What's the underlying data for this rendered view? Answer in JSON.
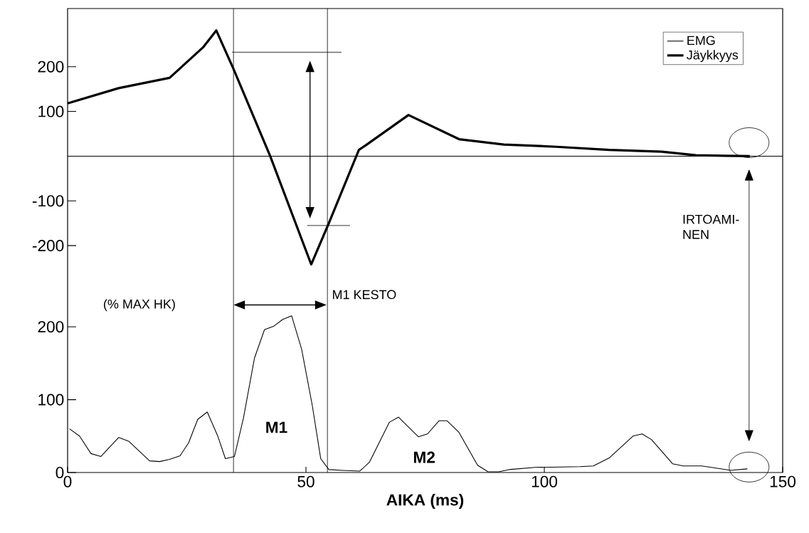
{
  "chart_data": [
    {
      "type": "line",
      "xlim": [
        0,
        150
      ],
      "ylim": [
        -300,
        330
      ],
      "yticks": [
        200,
        100,
        -100,
        -200
      ],
      "tick_labels": "y",
      "legend": "top right",
      "series": [
        {
          "name": "Jäykkyys",
          "color": "#000000",
          "x": [
            0,
            10.7,
            21.4,
            28.4,
            31.2,
            34.8,
            42.5,
            51.1,
            54.8,
            61.1,
            62.5,
            71.5,
            82.1,
            91.5,
            102.5,
            113.6,
            124.6,
            131.8,
            143.1
          ],
          "values": [
            118,
            152,
            175,
            243,
            281,
            195,
            0,
            -242,
            -150,
            14,
            24,
            92,
            38,
            26,
            21,
            14,
            10,
            2,
            0
          ]
        }
      ],
      "ref_lines": [
        {
          "axis": "y",
          "value": 0
        },
        {
          "axis": "x",
          "value": 34.8
        },
        {
          "axis": "x",
          "value": 54.5
        }
      ],
      "annotations": [
        "IRTOAMI-NEN"
      ]
    },
    {
      "type": "line",
      "xlim": [
        0,
        150
      ],
      "ylim": [
        0,
        250
      ],
      "xticks": [
        0,
        50,
        100,
        150
      ],
      "yticks": [
        0,
        100,
        200
      ],
      "xlabel": "AIKA (ms)",
      "series": [
        {
          "name": "EMG",
          "color": "#000000",
          "x": [
            0.4,
            2.5,
            4.9,
            7,
            10.7,
            12.8,
            17.2,
            19.3,
            21.4,
            23.6,
            25.4,
            27.3,
            29.3,
            31.5,
            33.1,
            35,
            36.9,
            39.2,
            41.3,
            43.3,
            45.1,
            47,
            49.1,
            51.3,
            53.1,
            54.8,
            57.6,
            61.3,
            63.3,
            67.5,
            69.4,
            73.6,
            75.5,
            77.9,
            79.6,
            82.1,
            86,
            88.2,
            90.4,
            92.6,
            98.1,
            107.5,
            110.3,
            113.6,
            118.6,
            120.5,
            122.5,
            126.9,
            129.1,
            133,
            139.1,
            142.6
          ],
          "values": [
            60,
            50,
            26,
            22,
            48,
            43,
            16,
            15,
            18,
            23,
            41,
            73,
            83,
            50,
            19,
            22,
            75,
            157,
            196,
            201,
            210,
            215,
            169,
            93,
            19,
            4,
            3,
            2,
            14,
            69,
            76,
            49,
            53,
            71,
            71,
            55,
            10,
            1,
            1,
            4,
            7,
            8,
            9,
            20,
            50,
            53,
            45,
            12,
            9,
            9,
            3,
            5
          ]
        }
      ],
      "ref_lines": [
        {
          "axis": "x",
          "value": 34.8
        },
        {
          "axis": "x",
          "value": 54.5
        }
      ],
      "annotations": [
        "(% MAX HK)",
        "M1 KESTO",
        "M1",
        "M2"
      ]
    }
  ]
}
